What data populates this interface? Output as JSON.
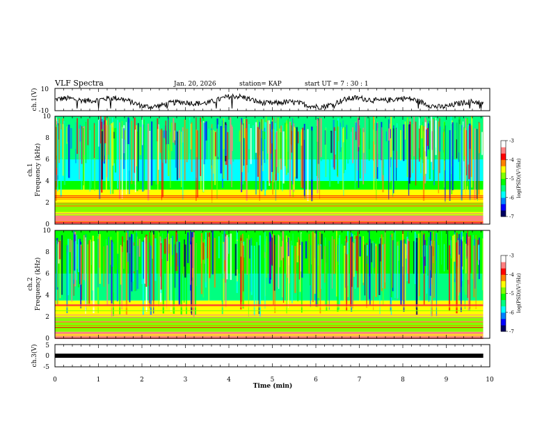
{
  "header": {
    "title": "VLF Spectra",
    "date": "Jan. 20, 2026",
    "station": "station= KAP",
    "start_time": "start  UT =   7 : 30 : 1"
  },
  "colors": {
    "spectrogram_scale": [
      "#000060",
      "#0000ff",
      "#0080ff",
      "#00ffff",
      "#00ff80",
      "#00ff00",
      "#80ff00",
      "#ffff00",
      "#ff8000",
      "#ff0000",
      "#ff8080",
      "#ffffff"
    ],
    "line": "#000000"
  },
  "chart_data": [
    {
      "type": "line",
      "name": "ch1-waveform",
      "ylabel": "ch.1(V)",
      "ylim": [
        -10,
        10
      ],
      "yticks": [
        "10",
        "-10"
      ],
      "x_range_min": [
        0,
        9.85
      ],
      "description_values": "noisy voltage trace between about -8 and +6 V"
    },
    {
      "type": "heatmap",
      "name": "ch1-spectrogram",
      "ylabel_line1": "ch.1",
      "ylabel_line2": "Frequency (kHz)",
      "ylim": [
        0,
        10
      ],
      "yticks": [
        "0",
        "2",
        "4",
        "6",
        "8",
        "10"
      ],
      "colorbar": {
        "label": "log(PSD)(V²/Hz)",
        "range": [
          -7,
          -3
        ],
        "ticks": [
          "-3",
          "-4",
          "-5",
          "-6",
          "-7"
        ]
      },
      "bands_khz": [
        {
          "from": 0,
          "to": 0.8,
          "level": -3.3
        },
        {
          "from": 0.8,
          "to": 2.0,
          "level": -4.8
        },
        {
          "from": 2.0,
          "to": 3.2,
          "level": -4.3
        },
        {
          "from": 3.2,
          "to": 4.0,
          "level": -5.3
        },
        {
          "from": 4.0,
          "to": 5.0,
          "level": -5.8
        },
        {
          "from": 5.0,
          "to": 6.0,
          "level": -6.0
        },
        {
          "from": 6.0,
          "to": 10.0,
          "level": -5.5
        }
      ]
    },
    {
      "type": "heatmap",
      "name": "ch2-spectrogram",
      "ylabel_line1": "ch.2",
      "ylabel_line2": "Frequency (kHz)",
      "ylim": [
        0,
        10
      ],
      "yticks": [
        "0",
        "2",
        "4",
        "6",
        "8",
        "10"
      ],
      "colorbar": {
        "label": "log(PSD)(V²/Hz)",
        "range": [
          -7,
          -3
        ],
        "ticks": [
          "-3",
          "-4",
          "-5",
          "-6",
          "-7"
        ]
      },
      "bands_khz": [
        {
          "from": 0,
          "to": 0.6,
          "level": -3.5
        },
        {
          "from": 0.6,
          "to": 2.0,
          "level": -5.0
        },
        {
          "from": 2.0,
          "to": 3.5,
          "level": -4.4
        },
        {
          "from": 3.5,
          "to": 6.0,
          "level": -5.4
        },
        {
          "from": 6.0,
          "to": 10.0,
          "level": -5.2
        }
      ]
    },
    {
      "type": "line",
      "name": "ch3-waveform",
      "ylabel": "ch.3(V)",
      "ylim": [
        -5,
        5
      ],
      "yticks": [
        "5",
        "0",
        "-5"
      ],
      "level_v": 0
    }
  ],
  "xaxis": {
    "label": "Time (min)",
    "range": [
      0,
      10
    ],
    "ticks": [
      "0",
      "1",
      "2",
      "3",
      "4",
      "5",
      "6",
      "7",
      "8",
      "9",
      "10"
    ],
    "data_end_min": 9.85
  }
}
